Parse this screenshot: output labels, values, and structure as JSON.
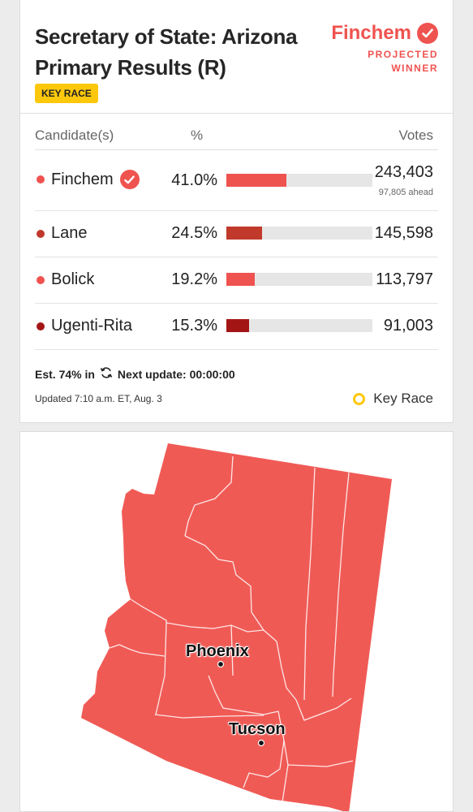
{
  "header": {
    "title": "Secretary of State: Arizona Primary Results (R)",
    "badge": "KEY RACE",
    "winner_name": "Finchem",
    "winner_label_1": "PROJECTED",
    "winner_label_2": "WINNER"
  },
  "table": {
    "col_candidate": "Candidate(s)",
    "col_pct": "%",
    "col_votes": "Votes",
    "rows": [
      {
        "name": "Finchem",
        "pct": "41.0%",
        "share": 0.41,
        "votes": "243,403",
        "note": "97,805 ahead",
        "color": "#ef5350",
        "winner": true
      },
      {
        "name": "Lane",
        "pct": "24.5%",
        "share": 0.245,
        "votes": "145,598",
        "color": "#c0392b"
      },
      {
        "name": "Bolick",
        "pct": "19.2%",
        "share": 0.192,
        "votes": "113,797",
        "color": "#ef5350"
      },
      {
        "name": "Ugenti-Rita",
        "pct": "15.3%",
        "share": 0.153,
        "votes": "91,003",
        "color": "#a31515"
      }
    ]
  },
  "footer": {
    "est": "Est. 74% in",
    "next_update": "Next update: 00:00:00",
    "updated": "Updated 7:10 a.m. ET, Aug. 3",
    "legend": "Key Race"
  },
  "map": {
    "fill_color": "#f05a55",
    "cities": [
      {
        "name": "Phoenix"
      },
      {
        "name": "Tucson"
      }
    ]
  },
  "icons": {
    "check": "check-circle-icon",
    "refresh": "refresh-icon",
    "key_race": "key-race-ring-icon"
  }
}
